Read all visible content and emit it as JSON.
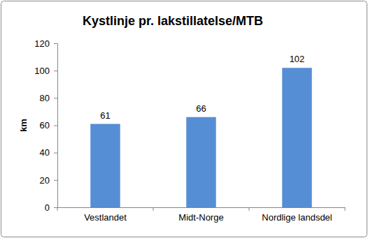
{
  "chart_data": {
    "type": "bar",
    "title": "Kystlinje pr. lakstillatelse/MTB",
    "y_label": "km",
    "categories": [
      "Vestlandet",
      "Midt-Norge",
      "Nordlige landsdel"
    ],
    "values": [
      61,
      66,
      102
    ],
    "color": "#558ed5",
    "ylim": [
      0,
      120
    ],
    "yticks": [
      0,
      20,
      40,
      60,
      80,
      100,
      120
    ],
    "grid": false,
    "data_labels": true
  }
}
